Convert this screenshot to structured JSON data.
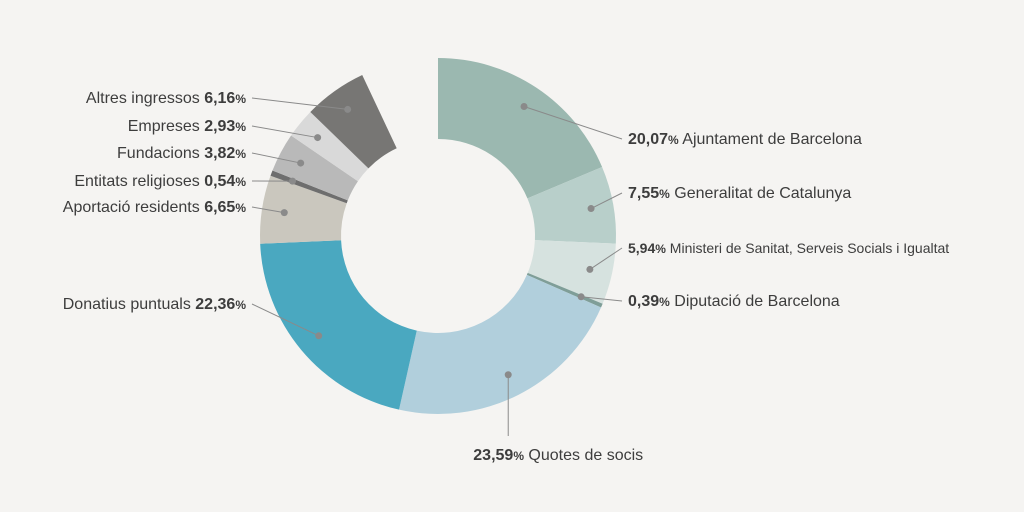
{
  "chart_data": {
    "type": "pie",
    "donut": true,
    "start_gap_percent": 7.0,
    "slices": [
      {
        "label": "Ajuntament de Barcelona",
        "value": 20.07,
        "value_text": "20,07",
        "color": "#9bb8b0"
      },
      {
        "label": "Generalitat de Catalunya",
        "value": 7.55,
        "value_text": "7,55",
        "color": "#b8cfca"
      },
      {
        "label": "Ministeri de Sanitat, Serveis Socials i Igualtat",
        "value": 5.94,
        "value_text": "5,94",
        "color": "#d6e2df"
      },
      {
        "label": "Diputació de Barcelona",
        "value": 0.39,
        "value_text": "0,39",
        "color": "#7f9e98"
      },
      {
        "label": "Quotes de socis",
        "value": 23.59,
        "value_text": "23,59",
        "color": "#b1cfdc"
      },
      {
        "label": "Donatius puntuals",
        "value": 22.36,
        "value_text": "22,36",
        "color": "#4aa8c0"
      },
      {
        "label": "Aportació residents",
        "value": 6.65,
        "value_text": "6,65",
        "color": "#cac7be"
      },
      {
        "label": "Entitats religioses",
        "value": 0.54,
        "value_text": "0,54",
        "color": "#6e6e6e"
      },
      {
        "label": "Fundacions",
        "value": 3.82,
        "value_text": "3,82",
        "color": "#b9b9b9"
      },
      {
        "label": "Empreses",
        "value": 2.93,
        "value_text": "2,93",
        "color": "#d9d9d9"
      },
      {
        "label": "Altres ingressos",
        "value": 6.16,
        "value_text": "6,16",
        "color": "#777674"
      }
    ],
    "percent_symbol": "%"
  }
}
